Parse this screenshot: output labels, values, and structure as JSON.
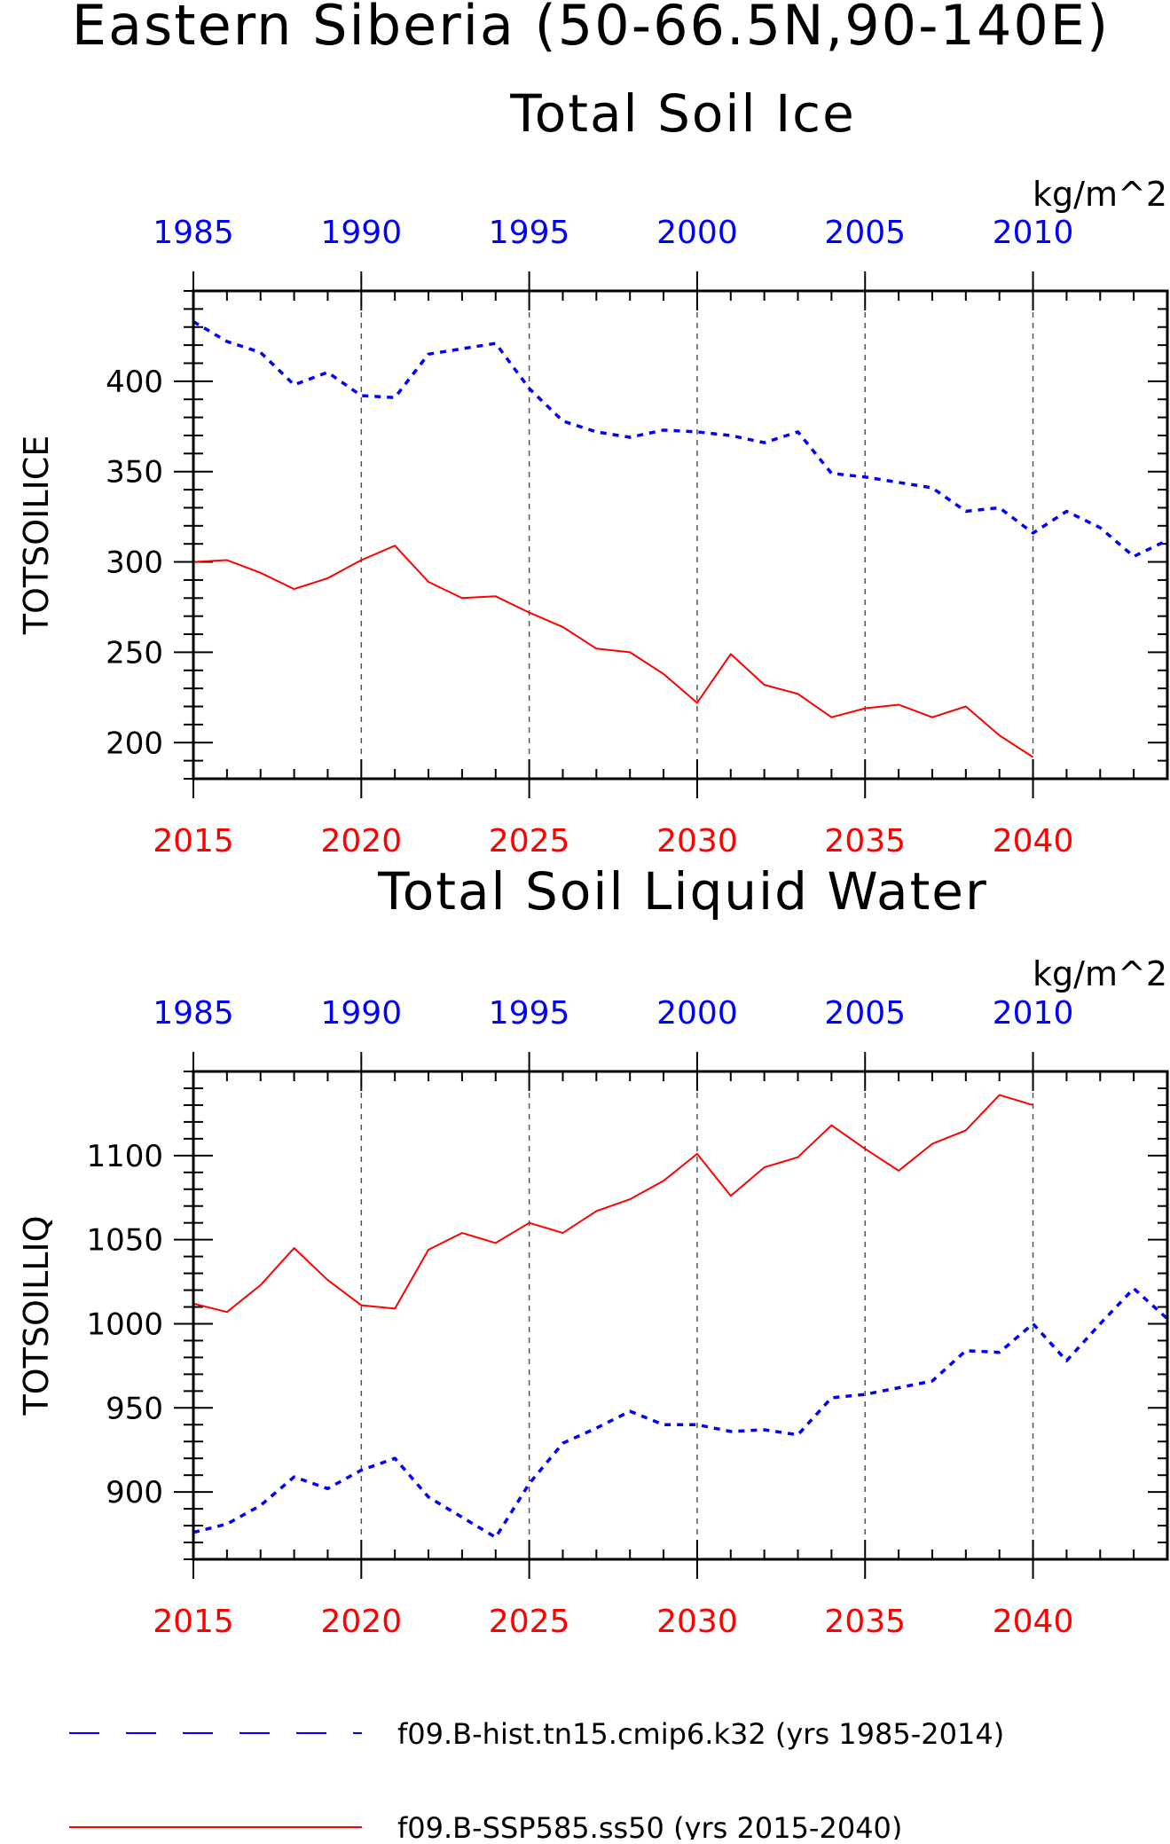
{
  "figure": {
    "title": "Eastern Siberia (50-66.5N,90-140E)",
    "series_legend": [
      {
        "label": "f09.B-hist.tn15.cmip6.k32 (yrs 1985-2014)",
        "color": "#0000ff",
        "style": "dashed"
      },
      {
        "label": "f09.B-SSP585.ss50 (yrs 2015-2040)",
        "color": "#ff0000",
        "style": "solid"
      }
    ]
  },
  "chart_data": [
    {
      "type": "line",
      "title": "Total Soil Ice",
      "units": "kg/m^2",
      "ylabel": "TOTSOILICE",
      "ylim": [
        180,
        450
      ],
      "yticks": [
        "200",
        "250",
        "300",
        "350",
        "400"
      ],
      "x_bottom_range": [
        2015,
        2044
      ],
      "x_bottom_ticks": [
        "2015",
        "2020",
        "2025",
        "2030",
        "2035",
        "2040"
      ],
      "x_top_ticks": [
        "1985",
        "1990",
        "1995",
        "2000",
        "2005",
        "2010"
      ],
      "grid_x_vertical_dashed": true,
      "series": [
        {
          "label": "f09.B-hist.tn15.cmip6.k32",
          "axis": "top",
          "color": "#0000ff",
          "style": "dashed",
          "x": [
            1985,
            1986,
            1987,
            1988,
            1989,
            1990,
            1991,
            1992,
            1993,
            1994,
            1995,
            1996,
            1997,
            1998,
            1999,
            2000,
            2001,
            2002,
            2003,
            2004,
            2005,
            2006,
            2007,
            2008,
            2009,
            2010,
            2011,
            2012,
            2013,
            2014
          ],
          "values": [
            433,
            422,
            416,
            398,
            405,
            392,
            391,
            415,
            418,
            421,
            396,
            378,
            372,
            369,
            373,
            372,
            370,
            366,
            372,
            349,
            347,
            344,
            341,
            328,
            330,
            316,
            328,
            319,
            303,
            312
          ]
        },
        {
          "label": "f09.B-SSP585.ss50",
          "axis": "bottom",
          "color": "#ff0000",
          "style": "solid",
          "x": [
            2015,
            2016,
            2017,
            2018,
            2019,
            2020,
            2021,
            2022,
            2023,
            2024,
            2025,
            2026,
            2027,
            2028,
            2029,
            2030,
            2031,
            2032,
            2033,
            2034,
            2035,
            2036,
            2037,
            2038,
            2039,
            2040
          ],
          "values": [
            300,
            301,
            294,
            285,
            291,
            301,
            309,
            289,
            280,
            281,
            272,
            264,
            252,
            250,
            238,
            222,
            249,
            232,
            227,
            214,
            219,
            221,
            214,
            220,
            204,
            192
          ]
        }
      ]
    },
    {
      "type": "line",
      "title": "Total Soil Liquid Water",
      "units": "kg/m^2",
      "ylabel": "TOTSOILLIQ",
      "ylim": [
        860,
        1150
      ],
      "yticks": [
        "900",
        "950",
        "1000",
        "1050",
        "1100"
      ],
      "x_bottom_range": [
        2015,
        2044
      ],
      "x_bottom_ticks": [
        "2015",
        "2020",
        "2025",
        "2030",
        "2035",
        "2040"
      ],
      "x_top_ticks": [
        "1985",
        "1990",
        "1995",
        "2000",
        "2005",
        "2010"
      ],
      "grid_x_vertical_dashed": true,
      "series": [
        {
          "label": "f09.B-hist.tn15.cmip6.k32",
          "axis": "top",
          "color": "#0000ff",
          "style": "dashed",
          "x": [
            1985,
            1986,
            1987,
            1988,
            1989,
            1990,
            1991,
            1992,
            1993,
            1994,
            1995,
            1996,
            1997,
            1998,
            1999,
            2000,
            2001,
            2002,
            2003,
            2004,
            2005,
            2006,
            2007,
            2008,
            2009,
            2010,
            2011,
            2012,
            2013,
            2014
          ],
          "values": [
            876,
            881,
            892,
            909,
            902,
            913,
            920,
            897,
            885,
            873,
            905,
            929,
            938,
            948,
            940,
            940,
            936,
            937,
            934,
            956,
            958,
            962,
            966,
            984,
            983,
            1000,
            978,
            1000,
            1021,
            1003
          ]
        },
        {
          "label": "f09.B-SSP585.ss50",
          "axis": "bottom",
          "color": "#ff0000",
          "style": "solid",
          "x": [
            2015,
            2016,
            2017,
            2018,
            2019,
            2020,
            2021,
            2022,
            2023,
            2024,
            2025,
            2026,
            2027,
            2028,
            2029,
            2030,
            2031,
            2032,
            2033,
            2034,
            2035,
            2036,
            2037,
            2038,
            2039,
            2040
          ],
          "values": [
            1012,
            1007,
            1023,
            1045,
            1026,
            1011,
            1009,
            1044,
            1054,
            1048,
            1060,
            1054,
            1067,
            1074,
            1085,
            1101,
            1076,
            1093,
            1099,
            1118,
            1104,
            1091,
            1107,
            1115,
            1136,
            1130
          ]
        }
      ]
    }
  ]
}
